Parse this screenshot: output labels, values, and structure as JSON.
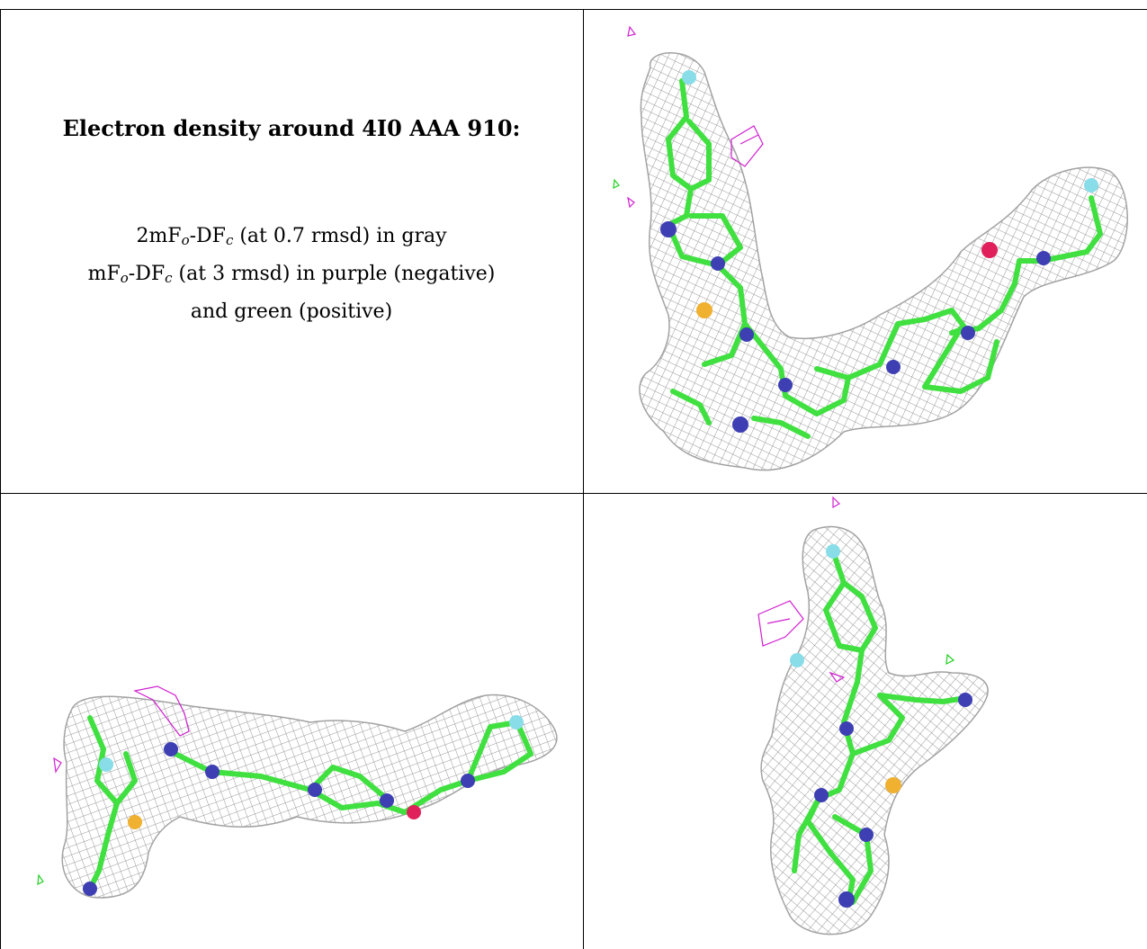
{
  "caption": {
    "title": "Electron density around 4I0 AAA 910:",
    "line1_prefix": "2mF",
    "line1_sub_o": "o",
    "line1_mid": "-DF",
    "line1_sub_c": "c",
    "line1_suffix": " (at 0.7 rmsd) in gray",
    "line2_prefix": "mF",
    "line2_sub_o": "o",
    "line2_mid": "-DF",
    "line2_sub_c": "c",
    "line2_suffix": " (at 3 rmsd) in purple (negative)",
    "line3": "and green (positive)"
  },
  "colors": {
    "mesh": "#8c8c8c",
    "carbon": "#3fe03f",
    "nitrogen": "#3d3fb3",
    "sulfur": "#f0b030",
    "oxygen": "#e0205a",
    "fluorine": "#88dde8",
    "negative_density": "#d020d0",
    "positive_density": "#20d020"
  }
}
